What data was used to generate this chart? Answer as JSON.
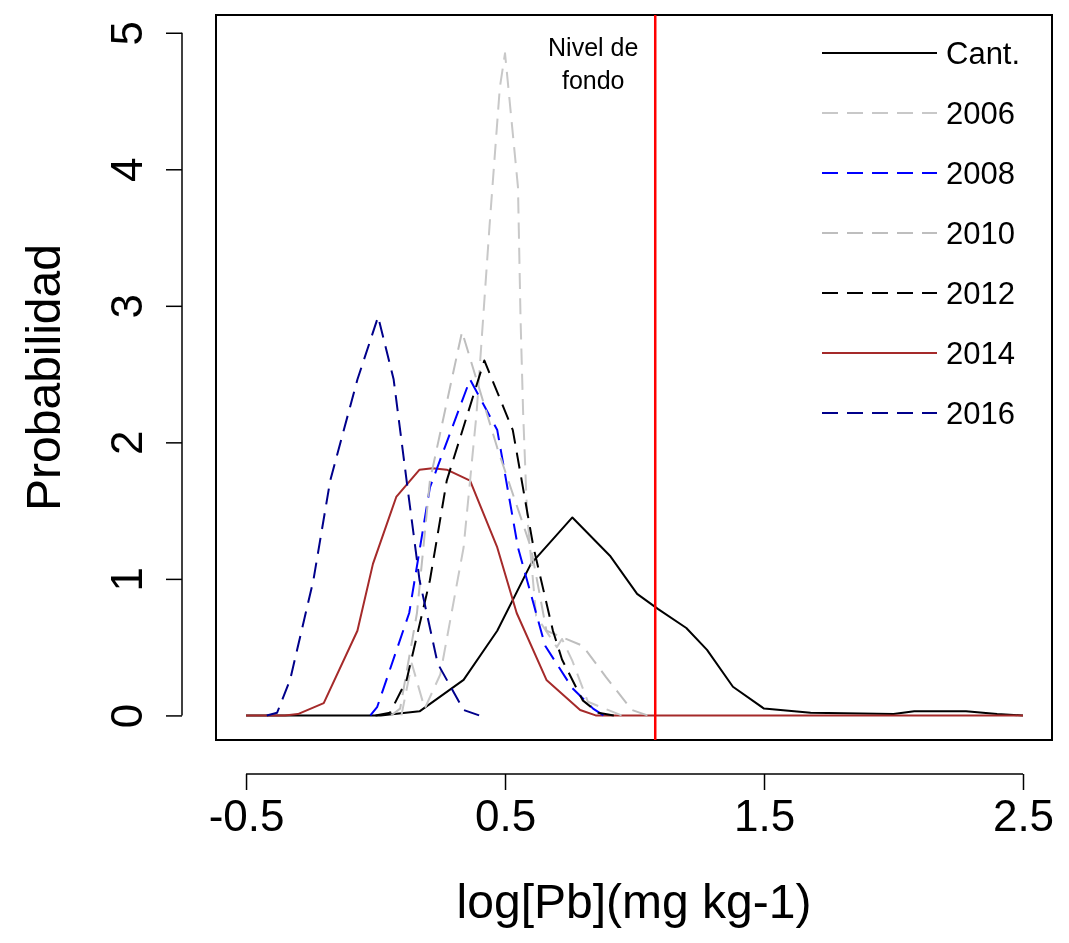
{
  "chart_data": {
    "type": "line",
    "xlabel": "log[Pb](mg kg-1)",
    "ylabel": "Probabilidad",
    "xlim": [
      -0.616,
      2.612
    ],
    "ylim": [
      -0.18,
      5.13
    ],
    "xticks": [
      -0.5,
      0.5,
      1.5,
      2.5
    ],
    "yticks": [
      0,
      1,
      2,
      3,
      4,
      5
    ],
    "grid": false,
    "legend": "top right",
    "ref_lines": [
      {
        "axis": "x",
        "value": 1.08,
        "label": "Nivel de\nfondo",
        "color": "#ff0000"
      }
    ],
    "series": [
      {
        "name": "Cant.",
        "color": "#000000",
        "line_style": "solid",
        "x": [
          -0.5,
          0.02,
          0.17,
          0.34,
          0.47,
          0.6,
          0.76,
          0.905,
          1.01,
          1.09,
          1.2,
          1.28,
          1.38,
          1.5,
          1.68,
          2.0,
          2.08,
          2.28,
          2.4,
          2.5
        ],
        "values": [
          0,
          0,
          0.03,
          0.26,
          0.62,
          1.11,
          1.45,
          1.17,
          0.89,
          0.78,
          0.64,
          0.48,
          0.21,
          0.05,
          0.02,
          0.01,
          0.03,
          0.03,
          0.01,
          0
        ]
      },
      {
        "name": "2006",
        "color": "#c8c8c8",
        "line_style": "dashed",
        "x": [
          0.1,
          0.14,
          0.19,
          0.25,
          0.34,
          0.39,
          0.44,
          0.48,
          0.5,
          0.55,
          0.56,
          0.57,
          0.585,
          0.62,
          0.7,
          0.72,
          0.76,
          0.82,
          0.95
        ],
        "values": [
          0,
          0.38,
          0.05,
          0.3,
          1.23,
          2.21,
          3.58,
          4.6,
          4.85,
          3.87,
          2.9,
          2.21,
          1.48,
          0.73,
          0.5,
          0.56,
          0.4,
          0.1,
          0
        ]
      },
      {
        "name": "2008",
        "color": "#0000ff",
        "line_style": "dashed",
        "x": [
          -0.02,
          0.006,
          0.13,
          0.21,
          0.365,
          0.47,
          0.55,
          0.62,
          0.655,
          0.76,
          0.84,
          0.88
        ],
        "values": [
          0,
          0.06,
          0.75,
          1.67,
          2.46,
          2.09,
          1.23,
          0.75,
          0.51,
          0.2,
          0.05,
          0
        ]
      },
      {
        "name": "2010",
        "color": "#bebebe",
        "line_style": "dashed",
        "x": [
          0.06,
          0.095,
          0.16,
          0.21,
          0.334,
          0.47,
          0.6,
          0.66,
          0.8,
          0.89,
          0.99,
          1.05
        ],
        "values": [
          0,
          0.05,
          0.75,
          1.72,
          2.81,
          1.96,
          1.23,
          0.62,
          0.51,
          0.28,
          0.04,
          0
        ]
      },
      {
        "name": "2012",
        "color": "#000000",
        "line_style": "dashed",
        "x": [
          0.0,
          0.056,
          0.12,
          0.21,
          0.275,
          0.42,
          0.53,
          0.61,
          0.685,
          0.72,
          0.8,
          0.86,
          0.92
        ],
        "values": [
          0,
          0.02,
          0.26,
          0.99,
          1.72,
          2.6,
          2.09,
          1.23,
          0.62,
          0.41,
          0.11,
          0.02,
          0
        ]
      },
      {
        "name": "2014",
        "color": "#a52a2a",
        "line_style": "solid",
        "x": [
          -0.5,
          -0.35,
          -0.3,
          -0.2,
          -0.07,
          -0.01,
          0.08,
          0.17,
          0.22,
          0.275,
          0.365,
          0.47,
          0.545,
          0.66,
          0.79,
          0.85,
          2.5
        ],
        "values": [
          0,
          0,
          0.01,
          0.09,
          0.62,
          1.11,
          1.6,
          1.8,
          1.81,
          1.8,
          1.72,
          1.23,
          0.75,
          0.26,
          0.04,
          0,
          0
        ]
      },
      {
        "name": "2016",
        "color": "#00008b",
        "line_style": "dashed",
        "x": [
          -0.42,
          -0.38,
          -0.33,
          -0.24,
          -0.175,
          -0.07,
          0.01,
          0.07,
          0.12,
          0.17,
          0.24,
          0.34,
          0.4
        ],
        "values": [
          0,
          0.02,
          0.26,
          0.99,
          1.72,
          2.46,
          2.92,
          2.46,
          1.72,
          0.99,
          0.38,
          0.04,
          0
        ]
      }
    ]
  }
}
